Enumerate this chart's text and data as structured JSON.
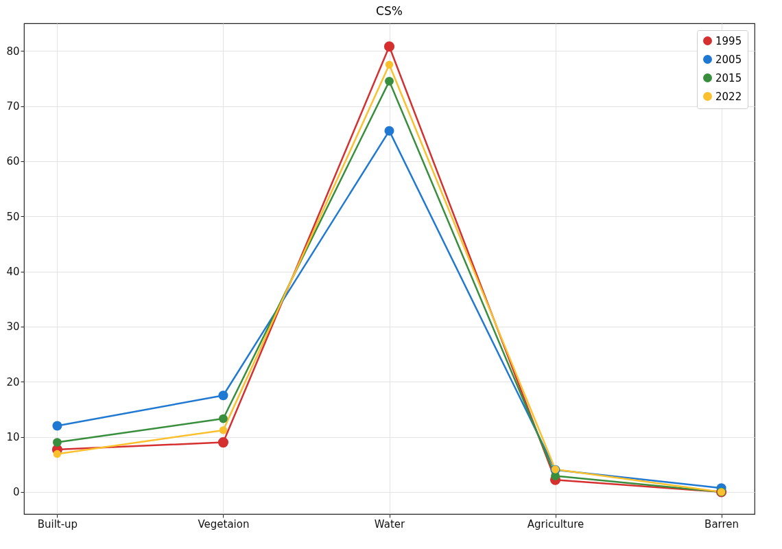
{
  "chart_data": {
    "type": "line",
    "title": "CS%",
    "categories": [
      "Built-up",
      "Vegetaion",
      "Water",
      "Agriculture",
      "Barren"
    ],
    "series": [
      {
        "name": "1995",
        "color": "#d62f2f",
        "values": [
          7.7,
          9.0,
          80.8,
          2.2,
          0.0
        ]
      },
      {
        "name": "2005",
        "color": "#1f78d1",
        "values": [
          12.0,
          17.5,
          65.5,
          4.0,
          0.7
        ]
      },
      {
        "name": "2015",
        "color": "#388e3c",
        "values": [
          9.0,
          13.3,
          74.5,
          2.9,
          0.0
        ]
      },
      {
        "name": "2022",
        "color": "#fbc02d",
        "values": [
          6.9,
          11.2,
          77.5,
          4.1,
          0.0
        ]
      }
    ],
    "ylim": [
      -4,
      85
    ],
    "yticks": [
      0,
      10,
      20,
      30,
      40,
      50,
      60,
      70,
      80
    ],
    "grid": true,
    "legend": "top right",
    "marker": "circle",
    "line_style": "solid"
  }
}
